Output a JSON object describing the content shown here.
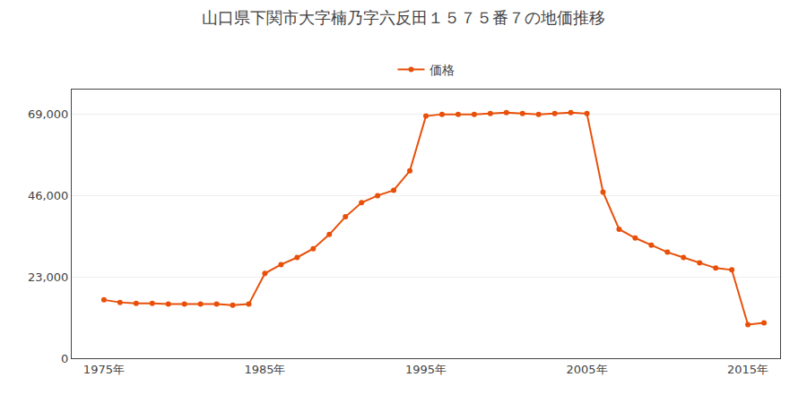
{
  "chart_data": {
    "type": "line",
    "title": "山口県下関市大字楠乃字六反田１５７５番７の地価推移",
    "x": [
      1975,
      1976,
      1977,
      1978,
      1979,
      1980,
      1981,
      1982,
      1983,
      1984,
      1985,
      1986,
      1987,
      1988,
      1989,
      1990,
      1991,
      1992,
      1993,
      1994,
      1995,
      1996,
      1997,
      1998,
      1999,
      2000,
      2001,
      2002,
      2003,
      2004,
      2005,
      2006,
      2007,
      2008,
      2009,
      2010,
      2011,
      2012,
      2013,
      2014,
      2015,
      2016
    ],
    "series": [
      {
        "name": "価格",
        "color": "#E8500A",
        "marker": "circle",
        "line_style": "solid",
        "values": [
          16500,
          15800,
          15500,
          15500,
          15300,
          15300,
          15300,
          15300,
          15000,
          15300,
          24000,
          26500,
          28500,
          31000,
          35000,
          40000,
          44000,
          46000,
          47500,
          53000,
          68500,
          69000,
          69000,
          69000,
          69200,
          69500,
          69200,
          69000,
          69200,
          69500,
          69200,
          47000,
          36500,
          34000,
          32000,
          30000,
          28500,
          27000,
          25500,
          25000,
          9500,
          10000
        ]
      }
    ],
    "xlim": [
      1973,
      2017
    ],
    "xticks": [
      {
        "value": 1975,
        "label": "1975年"
      },
      {
        "value": 1985,
        "label": "1985年"
      },
      {
        "value": 1995,
        "label": "1995年"
      },
      {
        "value": 2005,
        "label": "2005年"
      },
      {
        "value": 2015,
        "label": "2015年"
      }
    ],
    "ylim": [
      0,
      76000
    ],
    "yticks": [
      0,
      {
        "value": 23000,
        "label": "23,000"
      },
      {
        "value": 46000,
        "label": "46,000"
      },
      {
        "value": 69000,
        "label": "69,000"
      }
    ],
    "grid": true,
    "legend": "top"
  }
}
